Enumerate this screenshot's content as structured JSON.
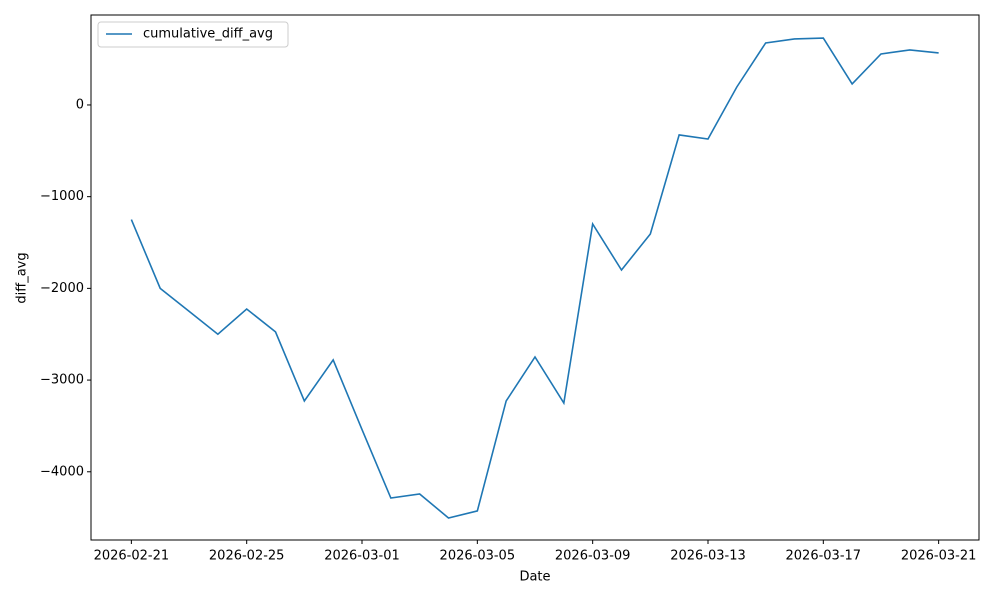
{
  "chart_data": {
    "type": "line",
    "x_label": "Date",
    "y_label": "diff_avg",
    "x": [
      "2026-02-21",
      "2026-02-22",
      "2026-02-23",
      "2026-02-24",
      "2026-02-25",
      "2026-02-26",
      "2026-02-27",
      "2026-02-28",
      "2026-03-01",
      "2026-03-02",
      "2026-03-03",
      "2026-03-04",
      "2026-03-05",
      "2026-03-06",
      "2026-03-07",
      "2026-03-08",
      "2026-03-09",
      "2026-03-10",
      "2026-03-11",
      "2026-03-12",
      "2026-03-13",
      "2026-03-14",
      "2026-03-15",
      "2026-03-16",
      "2026-03-17",
      "2026-03-18",
      "2026-03-19",
      "2026-03-20",
      "2026-03-21"
    ],
    "series": [
      {
        "name": "cumulative_diff_avg",
        "color": "#1f77b4",
        "values": [
          -1250,
          -2000,
          -2250,
          -2500,
          -2225,
          -2475,
          -3228,
          -2780,
          -3540,
          -4286,
          -4242,
          -4504,
          -4427,
          -3228,
          -2748,
          -3250,
          -1298,
          -1800,
          -1407,
          -327,
          -371,
          196,
          676,
          720,
          730,
          229,
          556,
          600,
          567
        ]
      }
    ],
    "xlim": [
      "2026-02-19T14:24",
      "2026-03-22T09:36"
    ],
    "xticks": [
      "2026-02-21",
      "2026-02-25",
      "2026-03-01",
      "2026-03-05",
      "2026-03-09",
      "2026-03-13",
      "2026-03-17",
      "2026-03-21"
    ],
    "ylim": [
      -4744,
      981
    ],
    "yticks": [
      {
        "value": -4000,
        "label": "−4000"
      },
      {
        "value": -3000,
        "label": "−3000"
      },
      {
        "value": -2000,
        "label": "−2000"
      },
      {
        "value": -1000,
        "label": "−1000"
      },
      0
    ],
    "legend": "upper left"
  }
}
